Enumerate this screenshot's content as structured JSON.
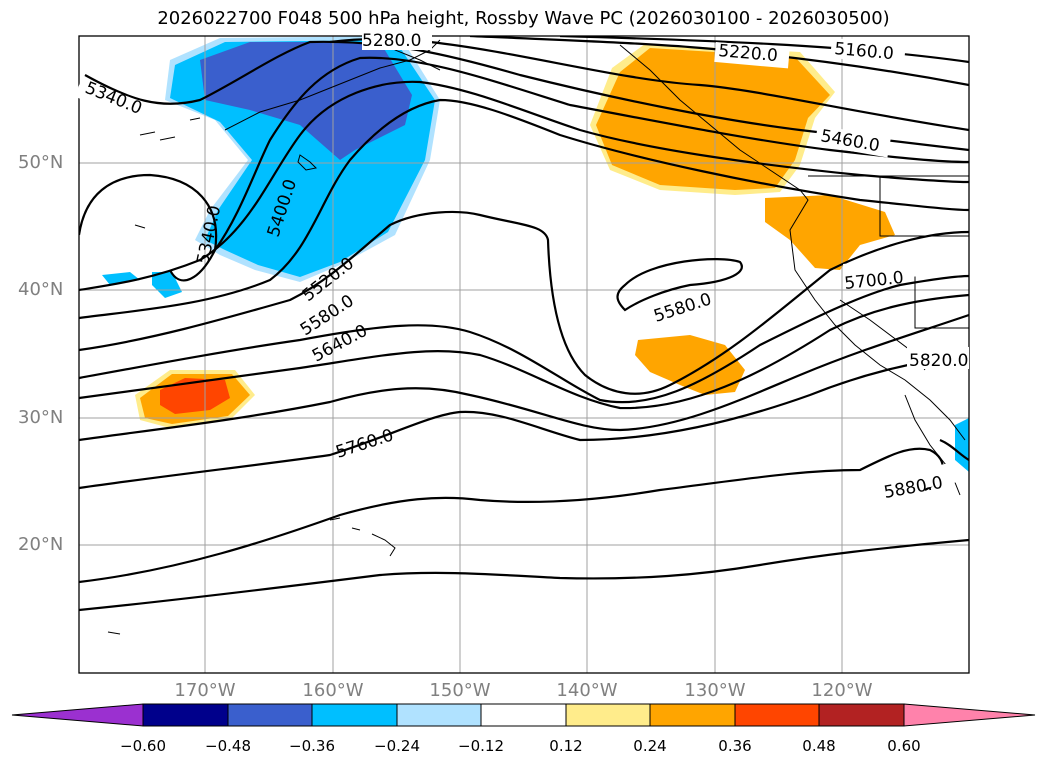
{
  "title": "2026022700 F048 500 hPa height, Rossby Wave PC (2026030100 - 2026030500)",
  "lat_labels": [
    "50°N",
    "40°N",
    "30°N",
    "20°N"
  ],
  "lon_labels": [
    "170°W",
    "160°W",
    "150°W",
    "140°W",
    "130°W",
    "120°W"
  ],
  "contour_labels": [
    "5280.0",
    "5220.0",
    "5160.0",
    "5340.0",
    "5460.0",
    "5340.0",
    "5400.0",
    "5520.0",
    "5580.0",
    "5640.0",
    "5580.0",
    "5700.0",
    "5820.0",
    "5760.0",
    "5880.0"
  ],
  "colorbar": {
    "ticks": [
      "−0.60",
      "−0.48",
      "−0.36",
      "−0.24",
      "−0.12",
      "0.12",
      "0.24",
      "0.36",
      "0.48",
      "0.60"
    ],
    "colors": [
      "#9b30d0",
      "#00008b",
      "#3a5fcd",
      "#00bfff",
      "#b0e2ff",
      "#ffffff",
      "#ffec8b",
      "#ffa500",
      "#ff4500",
      "#b22222",
      "#ff82ab"
    ]
  },
  "colors": {
    "neg_strong": "#3a5fcd",
    "neg_mid": "#00bfff",
    "neg_weak": "#b0e2ff",
    "pos_weak": "#ffec8b",
    "pos_mid": "#ffa500",
    "pos_strong": "#ff4500",
    "contour": "#000000",
    "grid": "#a0a0a0"
  }
}
